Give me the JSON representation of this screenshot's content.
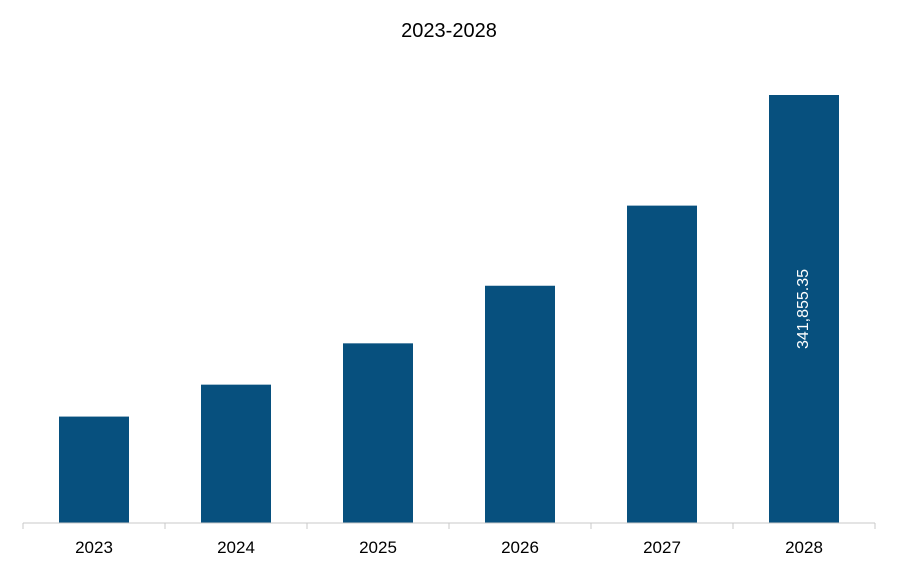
{
  "chart_data": {
    "type": "bar",
    "title": "2023-2028",
    "xlabel": "",
    "ylabel": "",
    "categories": [
      "2023",
      "2024",
      "2025",
      "2026",
      "2027",
      "2028"
    ],
    "values": [
      85000,
      110500,
      143500,
      189500,
      253500,
      341855.35
    ],
    "data_labels": [
      "",
      "",
      "",
      "",
      "",
      "341,855.35"
    ],
    "ylim": [
      0,
      360000
    ],
    "grid": false,
    "legend": "none",
    "bar_color": "#07507e",
    "axis_color": "#c8c8c8"
  }
}
